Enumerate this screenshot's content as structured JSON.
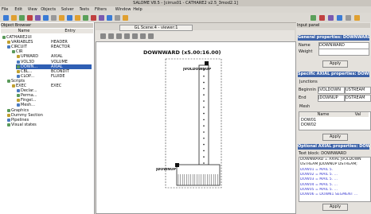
{
  "window": {
    "title": "SALOME V8.5 - [cirrus01 - CATHARE2 v2.5_3mod2.1]"
  },
  "menu": [
    "File",
    "Edit",
    "View",
    "Objects",
    "Solver",
    "Tests",
    "Filters",
    "Window",
    "Help"
  ],
  "object_browser": {
    "title": "Object Browser",
    "columns": [
      "Name",
      "Entry"
    ],
    "rows": [
      [
        "CATHARE2UI"
      ],
      [
        "VARIABLES",
        "HEADER"
      ],
      [
        "CIRCUIT",
        "REACTOR"
      ],
      [
        "CIR"
      ],
      [
        "UPWARD",
        "AXIAL"
      ],
      [
        "VOL3D",
        "VOLUME"
      ],
      [
        "DOWN...",
        "AXIAL"
      ],
      [
        "CBL...",
        "BCONDIT"
      ],
      [
        "CLOP...",
        "FLUIDE"
      ],
      [
        "Scripts"
      ],
      [
        "EXEC",
        "EXEC"
      ],
      [
        "Declar..."
      ],
      [
        "Perma..."
      ],
      [
        "Fingel..."
      ],
      [
        "Mesh..."
      ],
      [
        "Graphics"
      ],
      [
        "Dummy Section"
      ],
      [
        "Pipelines"
      ],
      [
        "Visual states"
      ]
    ]
  },
  "viewer": {
    "tab": "GL Scene:4 - viewer:1",
    "diagram_title": "DOWNWARD (x5.00:16.00)",
    "top_junction": "JVOLDOWNUP",
    "bottom_junction": "JDOWNUP"
  },
  "input_panel": {
    "title": "Input panel",
    "general": {
      "header": "General properties: DOWNWARD",
      "name_label": "Name",
      "name_value": "DOWNWARD",
      "weight_label": "Weight",
      "apply": "Apply"
    },
    "specific": {
      "header": "Specific AXIAL properties: DOWNWARD",
      "junctions": "Junctions",
      "beginning_label": "Beginning",
      "beginning_junction": "JVOLDOWN",
      "beginning_side": "USTREAM",
      "end_label": "End",
      "end_junction": "JDOWNUP",
      "end_side": "DSTREAM",
      "mesh": "Mesh",
      "columns": [
        "Name",
        "Val"
      ],
      "rows": [
        "DOW01",
        "DOW02"
      ],
      "apply": "Apply"
    },
    "optional": {
      "header": "Optional AXIAL properties: DOWNWARD",
      "text_block": "Text block: DOWNWARD",
      "lines": [
        "DOWNWARD = AXIAL JVOLDOWN",
        "USTREAM JDOWNUP DSTREAM;",
        "DOW01 = MAIL 5.",
        "DOW02 = MAIL 5. ...",
        "DOW03 = MAIL 5. ...",
        "DOW04 = MAIL 5. ...",
        "DOW05 = MAIL 5. ...",
        "DOW06 = DOWN1 SEGMENT ..."
      ],
      "apply": "Apply"
    }
  }
}
